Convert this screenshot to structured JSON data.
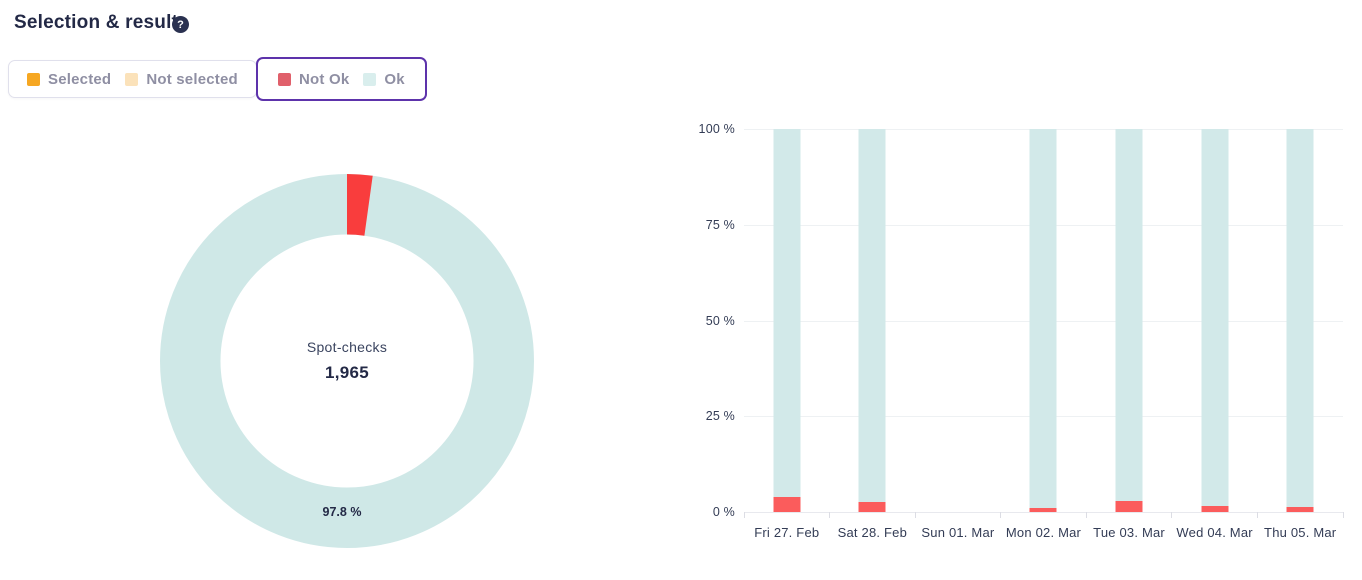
{
  "header": {
    "title": "Selection & results",
    "help_glyph": "?"
  },
  "legend_toggles": {
    "selection": {
      "active": false,
      "items": [
        {
          "label": "Selected",
          "color": "#f6a722"
        },
        {
          "label": "Not selected",
          "color": "#fbe2ba"
        }
      ]
    },
    "results": {
      "active": true,
      "border_color": "#5d33ab",
      "items": [
        {
          "label": "Not Ok",
          "color": "#e0606b"
        },
        {
          "label": "Ok",
          "color": "#d9eeed"
        }
      ]
    }
  },
  "chart_data": [
    {
      "type": "pie",
      "subtype": "donut",
      "center_label": "Spot-checks",
      "center_value": "1,965",
      "total": 1965,
      "series": [
        {
          "name": "Ok",
          "value": 97.8,
          "label": "97.8 %",
          "color": "#cfe8e7"
        },
        {
          "name": "Not Ok",
          "value": 2.2,
          "label": "",
          "color": "#f93d3d"
        }
      ],
      "start_angle_deg": 0,
      "direction": "clockwise",
      "data_label_shown": "97.8 %"
    },
    {
      "type": "bar",
      "stacked": true,
      "orientation": "vertical",
      "categories": [
        "Fri 27. Feb",
        "Sat 28. Feb",
        "Sun 01. Mar",
        "Mon 02. Mar",
        "Tue 03. Mar",
        "Wed 04. Mar",
        "Thu 05. Mar"
      ],
      "series": [
        {
          "name": "Not Ok",
          "color": "#fb5c5c",
          "values": [
            4,
            2.5,
            null,
            1,
            2.8,
            1.5,
            1.2
          ]
        },
        {
          "name": "Ok",
          "color": "#d2e9e9",
          "values": [
            96,
            97.5,
            null,
            99,
            97.2,
            98.5,
            98.8
          ]
        }
      ],
      "ylim": [
        0,
        100
      ],
      "yticks": [
        {
          "label": "0 %",
          "value": 0
        },
        {
          "label": "25 %",
          "value": 25
        },
        {
          "label": "50 %",
          "value": 50
        },
        {
          "label": "75 %",
          "value": 75
        },
        {
          "label": "100 %",
          "value": 100
        }
      ],
      "grid": true,
      "legend_position": "top-left-external"
    }
  ]
}
